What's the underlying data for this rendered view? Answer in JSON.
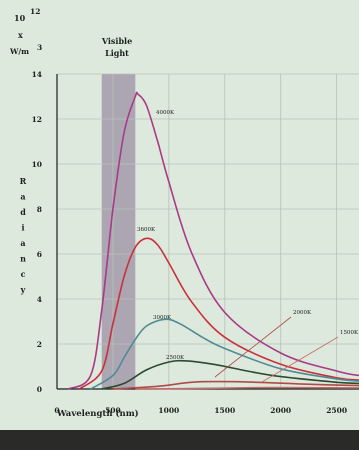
{
  "chart_data": {
    "type": "line",
    "ylabel_unit": [
      "10",
      "12",
      "x",
      "W/m",
      "3"
    ],
    "ylabel": "Radiancy",
    "xlabel": "Wavelength (nm)",
    "xlim": [
      0,
      2700
    ],
    "ylim": [
      0,
      14
    ],
    "x_ticks": [
      0,
      500,
      1000,
      1500,
      2000,
      2500
    ],
    "y_ticks": [
      0,
      2,
      4,
      6,
      8,
      10,
      12,
      14
    ],
    "grid": true,
    "visible_band": {
      "label_line1": "Visible",
      "label_line2": "Light",
      "range": [
        400,
        700
      ]
    },
    "series": [
      {
        "name": "4000K",
        "temperature_k": 4000,
        "color": "#a83a86",
        "x": [
          100,
          300,
          400,
          500,
          600,
          700,
          725,
          800,
          900,
          1000,
          1200,
          1500,
          2000,
          2500,
          2700
        ],
        "y": [
          0,
          0.6,
          3.5,
          8.0,
          11.4,
          13.0,
          13.1,
          12.6,
          11.0,
          9.2,
          6.1,
          3.4,
          1.6,
          0.8,
          0.6
        ]
      },
      {
        "name": "3600K",
        "temperature_k": 3600,
        "color": "#c9303a",
        "x": [
          200,
          400,
          500,
          600,
          700,
          805,
          900,
          1000,
          1200,
          1500,
          2000,
          2500,
          2700
        ],
        "y": [
          0,
          0.8,
          2.9,
          5.0,
          6.3,
          6.7,
          6.4,
          5.6,
          3.9,
          2.3,
          1.1,
          0.5,
          0.4
        ]
      },
      {
        "name": "3000K",
        "temperature_k": 3000,
        "color": "#4f8b97",
        "x": [
          300,
          500,
          600,
          700,
          800,
          966,
          1100,
          1300,
          1500,
          2000,
          2500,
          2700
        ],
        "y": [
          0,
          0.6,
          1.4,
          2.2,
          2.8,
          3.1,
          2.9,
          2.3,
          1.8,
          0.9,
          0.45,
          0.35
        ]
      },
      {
        "name": "2500K",
        "temperature_k": 2500,
        "color": "#2b4a2e",
        "x": [
          400,
          600,
          800,
          1000,
          1159,
          1400,
          1700,
          2000,
          2500,
          2700
        ],
        "y": [
          0,
          0.25,
          0.85,
          1.2,
          1.25,
          1.1,
          0.8,
          0.55,
          0.3,
          0.25
        ]
      },
      {
        "name": "2000K",
        "temperature_k": 2000,
        "color": "#b04a48",
        "x": [
          500,
          900,
          1200,
          1449,
          1800,
          2200,
          2700
        ],
        "y": [
          0,
          0.12,
          0.3,
          0.33,
          0.3,
          0.22,
          0.15
        ]
      },
      {
        "name": "1500K",
        "temperature_k": 1500,
        "color": "#c06c6a",
        "x": [
          700,
          1200,
          1600,
          1932,
          2400,
          2700
        ],
        "y": [
          0,
          0.02,
          0.05,
          0.06,
          0.055,
          0.05
        ]
      }
    ]
  },
  "colors": {
    "paper": "#dde9dd",
    "band": "#a69fae",
    "grid": "#b7c1b8",
    "axis": "#1b1f1b",
    "text": "#1c201c"
  }
}
